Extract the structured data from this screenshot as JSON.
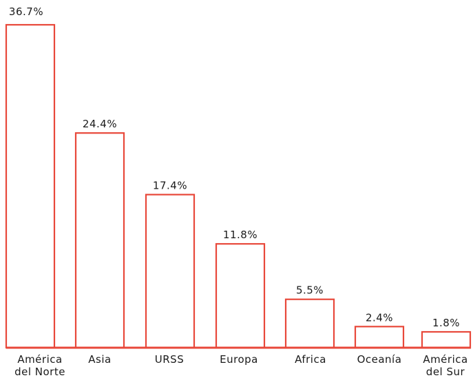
{
  "chart_data": {
    "type": "bar",
    "categories": [
      [
        "América",
        "del Norte"
      ],
      [
        "Asia"
      ],
      [
        "URSS"
      ],
      [
        "Europa"
      ],
      [
        "Africa"
      ],
      [
        "Oceanía"
      ],
      [
        "América",
        "del Sur"
      ]
    ],
    "values": [
      36.7,
      24.4,
      17.4,
      11.8,
      5.5,
      2.4,
      1.8
    ],
    "value_labels": [
      "36.7%",
      "24.4%",
      "17.4%",
      "11.8%",
      "5.5%",
      "2.4%",
      "1.8%"
    ],
    "ylim": [
      0,
      36.7
    ],
    "grid": false,
    "colors": {
      "bar_stroke": "#e8483a",
      "bar_fill": "#ffffff",
      "text": "#1a1a1a"
    }
  }
}
